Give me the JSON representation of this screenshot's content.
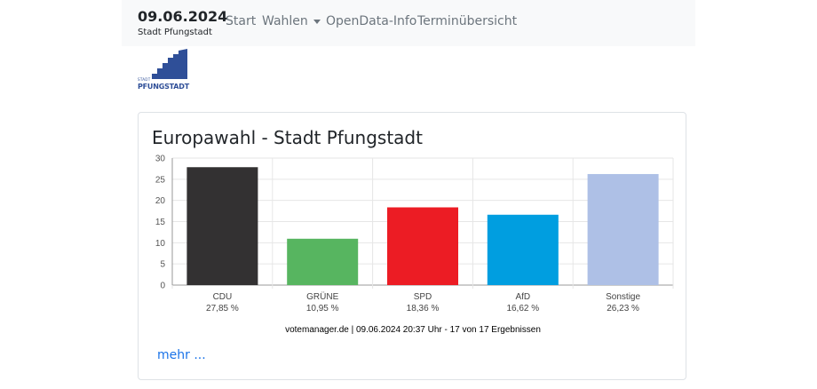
{
  "navbar": {
    "date": "09.06.2024",
    "city": "Stadt Pfungstadt",
    "items": [
      {
        "label": "Start"
      },
      {
        "label": "Wahlen"
      },
      {
        "label": "OpenData-Info"
      },
      {
        "label": "Terminübersicht"
      }
    ]
  },
  "logo": {
    "small": "STADT",
    "big": "PFUNGSTADT",
    "color": "#2f4f98"
  },
  "card": {
    "title": "Europawahl - Stadt Pfungstadt",
    "source": "votemanager.de | 09.06.2024 20:37 Uhr - 17 von 17 Ergebnissen",
    "more": "mehr ..."
  },
  "chart_data": {
    "type": "bar",
    "categories": [
      "CDU",
      "GRÜNE",
      "SPD",
      "AfD",
      "Sonstige"
    ],
    "values": [
      27.85,
      10.95,
      18.36,
      16.62,
      26.23
    ],
    "value_labels": [
      "27,85 %",
      "10,95 %",
      "18,36 %",
      "16,62 %",
      "26,23 %"
    ],
    "colors": [
      "#333132",
      "#57b560",
      "#ec1c24",
      "#009ee0",
      "#aec0e6"
    ],
    "yticks": [
      "0",
      "5",
      "10",
      "15",
      "20",
      "25",
      "30"
    ],
    "ylim": [
      0,
      30
    ],
    "grid": true
  }
}
